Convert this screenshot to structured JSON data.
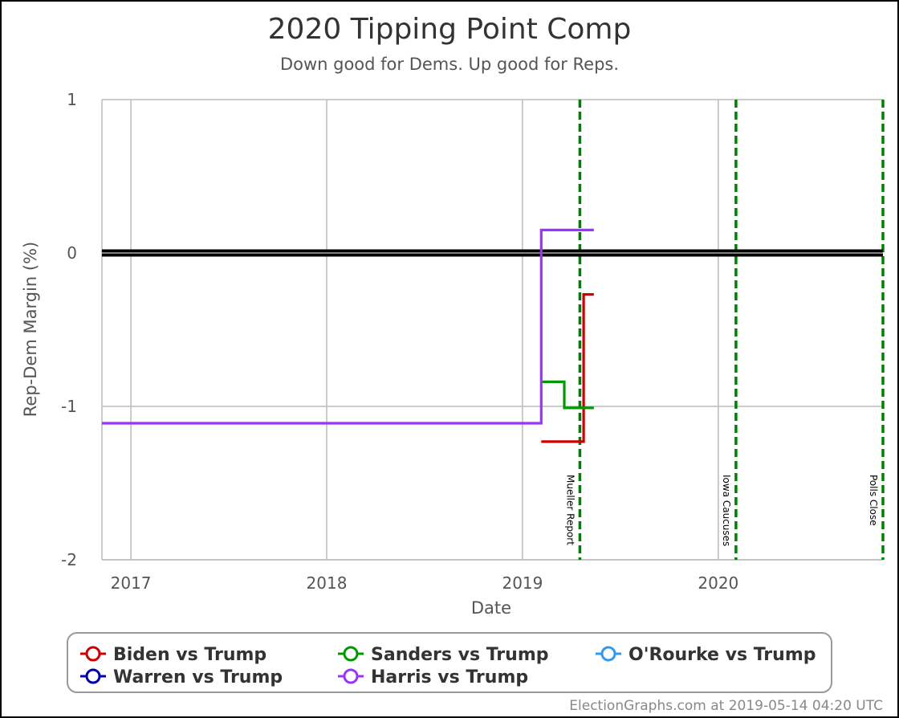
{
  "chart_data": {
    "type": "line",
    "title": "2020 Tipping Point Comp",
    "subtitle": "Down good for Dems. Up good for Reps.",
    "xlabel": "Date",
    "ylabel": "Rep-Dem Margin (%)",
    "xlim": [
      "2016-11-08",
      "2020-11-03"
    ],
    "ylim": [
      -2,
      1
    ],
    "x_ticks": [
      {
        "date": "2017-01-01",
        "label": "2017"
      },
      {
        "date": "2018-01-01",
        "label": "2018"
      },
      {
        "date": "2019-01-01",
        "label": "2019"
      },
      {
        "date": "2020-01-01",
        "label": "2020"
      }
    ],
    "y_ticks": [
      {
        "value": 1,
        "label": "1"
      },
      {
        "value": 0,
        "label": "0"
      },
      {
        "value": -1,
        "label": "-1"
      },
      {
        "value": -2,
        "label": "-2"
      }
    ],
    "grid": true,
    "zero_line": true,
    "events": [
      {
        "date": "2019-04-18",
        "label": "Mueller Report",
        "color": "#008000"
      },
      {
        "date": "2020-02-03",
        "label": "Iowa Caucuses",
        "color": "#008000"
      },
      {
        "date": "2020-11-03",
        "label": "Polls Close",
        "color": "#008000"
      }
    ],
    "series": [
      {
        "name": "Biden vs Trump",
        "color": "#cc0000",
        "step": true,
        "points": [
          {
            "x": "2019-02-05",
            "y": -1.23
          },
          {
            "x": "2019-04-25",
            "y": -1.23
          },
          {
            "x": "2019-04-25",
            "y": -0.27
          },
          {
            "x": "2019-05-14",
            "y": -0.27
          }
        ]
      },
      {
        "name": "Warren vs Trump",
        "color": "#0000aa",
        "step": true,
        "points": []
      },
      {
        "name": "Sanders vs Trump",
        "color": "#009900",
        "step": true,
        "points": [
          {
            "x": "2019-02-05",
            "y": -0.84
          },
          {
            "x": "2019-03-20",
            "y": -0.84
          },
          {
            "x": "2019-03-20",
            "y": -1.01
          },
          {
            "x": "2019-05-14",
            "y": -1.01
          }
        ]
      },
      {
        "name": "Harris vs Trump",
        "color": "#9933ff",
        "step": true,
        "points": [
          {
            "x": "2016-11-08",
            "y": -1.11
          },
          {
            "x": "2019-02-05",
            "y": -1.11
          },
          {
            "x": "2019-02-05",
            "y": 0.15
          },
          {
            "x": "2019-05-14",
            "y": 0.15
          }
        ]
      },
      {
        "name": "O'Rourke vs Trump",
        "color": "#3399ee",
        "step": true,
        "points": []
      }
    ],
    "legend": {
      "placement": "bottom",
      "entries": [
        {
          "name": "Biden vs Trump",
          "color": "#cc0000"
        },
        {
          "name": "Sanders vs Trump",
          "color": "#009900"
        },
        {
          "name": "O'Rourke vs Trump",
          "color": "#3399ee"
        },
        {
          "name": "Warren vs Trump",
          "color": "#0000aa"
        },
        {
          "name": "Harris vs Trump",
          "color": "#9933ff"
        }
      ]
    },
    "credit": "ElectionGraphs.com at 2019-05-14 04:20 UTC"
  }
}
